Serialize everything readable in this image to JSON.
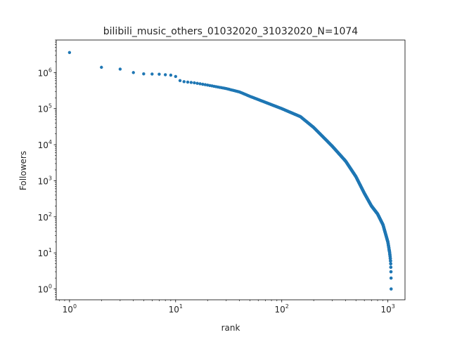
{
  "chart_data": {
    "type": "scatter",
    "title": "bilibili_music_others_01032020_31032020_N=1074",
    "xlabel": "rank",
    "ylabel": "Followers",
    "x_scale": "log",
    "y_scale": "log",
    "xlim": [
      0.75,
      1450
    ],
    "ylim": [
      0.5,
      8000000
    ],
    "grid": false,
    "point_color": "#1f77b4",
    "x_ticks": [
      {
        "base": "10",
        "exp": "0"
      },
      {
        "base": "10",
        "exp": "1"
      },
      {
        "base": "10",
        "exp": "2"
      },
      {
        "base": "10",
        "exp": "3"
      }
    ],
    "y_ticks": [
      {
        "base": "10",
        "exp": "0"
      },
      {
        "base": "10",
        "exp": "1"
      },
      {
        "base": "10",
        "exp": "2"
      },
      {
        "base": "10",
        "exp": "3"
      },
      {
        "base": "10",
        "exp": "4"
      },
      {
        "base": "10",
        "exp": "5"
      },
      {
        "base": "10",
        "exp": "6"
      }
    ],
    "n_points": 1074,
    "head_points": [
      [
        1,
        3600000
      ],
      [
        2,
        1400000
      ],
      [
        3,
        1250000
      ],
      [
        4,
        1000000
      ],
      [
        5,
        920000
      ],
      [
        6,
        910000
      ],
      [
        7,
        900000
      ],
      [
        8,
        870000
      ],
      [
        9,
        850000
      ],
      [
        10,
        780000
      ]
    ],
    "curve_anchors": [
      [
        11,
        600000
      ],
      [
        12,
        560000
      ],
      [
        15,
        520000
      ],
      [
        20,
        450000
      ],
      [
        30,
        360000
      ],
      [
        40,
        290000
      ],
      [
        50,
        220000
      ],
      [
        70,
        150000
      ],
      [
        100,
        100000
      ],
      [
        150,
        60000
      ],
      [
        200,
        30000
      ],
      [
        300,
        9000
      ],
      [
        400,
        3500
      ],
      [
        500,
        1300
      ],
      [
        600,
        450
      ],
      [
        700,
        200
      ],
      [
        800,
        120
      ],
      [
        900,
        60
      ],
      [
        1000,
        20
      ],
      [
        1040,
        10
      ],
      [
        1060,
        6
      ],
      [
        1070,
        3
      ],
      [
        1074,
        1
      ]
    ]
  }
}
